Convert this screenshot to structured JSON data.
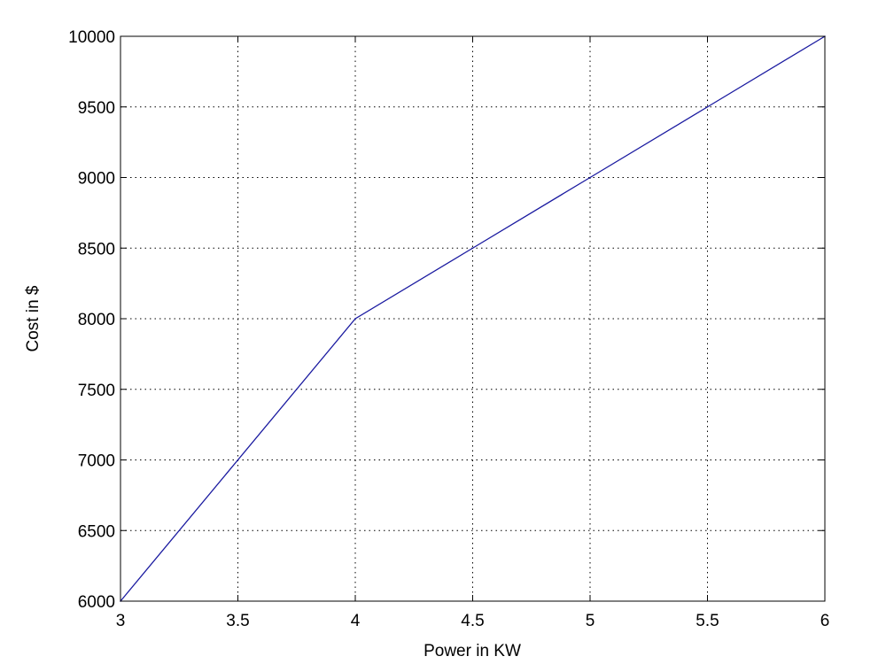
{
  "chart_data": {
    "type": "line",
    "title": "",
    "xlabel": "Power in KW",
    "ylabel": "Cost in $",
    "xlim": [
      3,
      6
    ],
    "ylim": [
      6000,
      10000
    ],
    "xticks": [
      3,
      3.5,
      4,
      4.5,
      5,
      5.5,
      6
    ],
    "xtick_labels": [
      "3",
      "3.5",
      "4",
      "4.5",
      "5",
      "5.5",
      "6"
    ],
    "yticks": [
      6000,
      6500,
      7000,
      7500,
      8000,
      8500,
      9000,
      9500,
      10000
    ],
    "ytick_labels": [
      "6000",
      "6500",
      "7000",
      "7500",
      "8000",
      "8500",
      "9000",
      "9500",
      "10000"
    ],
    "grid": true,
    "grid_style": "dotted",
    "legend": "none",
    "series": [
      {
        "color": "#1a1aa0",
        "x": [
          3,
          3.5,
          4,
          4.5,
          5,
          5.5,
          6
        ],
        "y": [
          6000,
          7000,
          8000,
          8500,
          9000,
          9500,
          10000
        ]
      }
    ]
  }
}
